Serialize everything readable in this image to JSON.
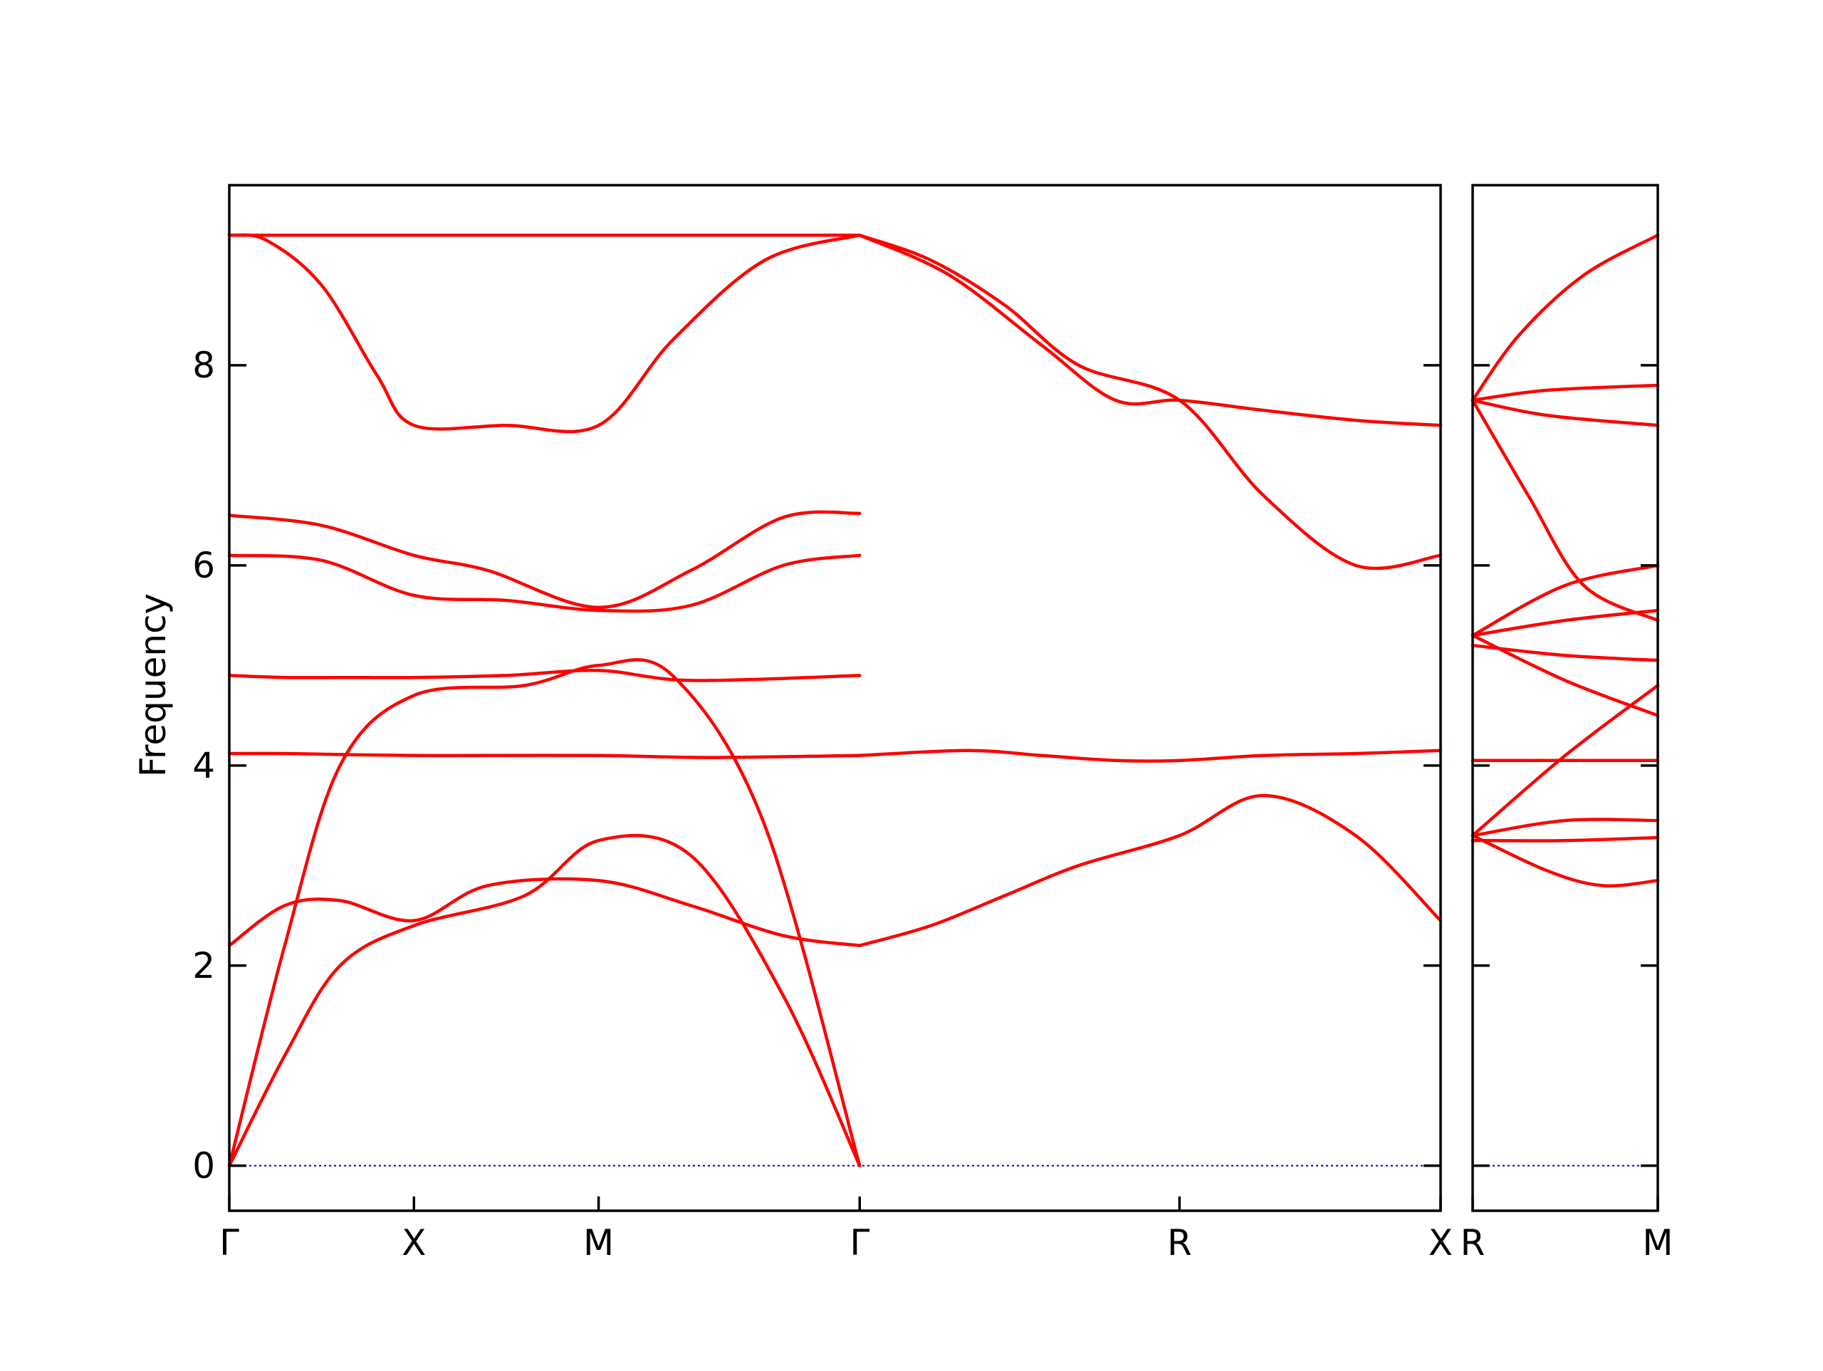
{
  "chart_data": {
    "type": "line",
    "title": "",
    "ylabel": "Frequency",
    "xlabel": "",
    "ylim": [
      -0.45,
      9.8
    ],
    "yticks": [
      0,
      2,
      4,
      6,
      8
    ],
    "line_color": "#ff0000",
    "zero_line_color": "#0000cc",
    "panels": [
      {
        "id": "main",
        "ticks": [
          {
            "label": "Γ",
            "pos": 0
          },
          {
            "label": "X",
            "pos": 1
          },
          {
            "label": "M",
            "pos": 2
          },
          {
            "label": "Γ",
            "pos": 3.414
          },
          {
            "label": "R",
            "pos": 5.146
          },
          {
            "label": "X",
            "pos": 6.56
          }
        ],
        "series": [
          {
            "x": [
              0,
              0.3,
              0.6,
              1,
              1.5,
              2,
              2.7,
              3.414
            ],
            "y": [
              9.3,
              9.3,
              9.3,
              9.3,
              9.3,
              9.3,
              9.3,
              9.3
            ]
          },
          {
            "x": [
              0,
              0.2,
              0.5,
              0.8,
              1,
              1.5,
              2,
              2.4,
              2.9,
              3.414
            ],
            "y": [
              9.3,
              9.25,
              8.8,
              7.9,
              7.4,
              7.4,
              7.4,
              8.25,
              9.05,
              9.3
            ]
          },
          {
            "x": [
              0,
              0.5,
              1,
              1.4,
              2,
              2.5,
              3,
              3.414
            ],
            "y": [
              6.5,
              6.4,
              6.1,
              5.95,
              5.58,
              5.95,
              6.48,
              6.52
            ]
          },
          {
            "x": [
              0,
              0.3,
              0.6,
              1,
              1.5,
              2,
              2.5,
              3.414
            ],
            "y": [
              4.9,
              4.88,
              4.88,
              4.88,
              4.9,
              4.95,
              4.85,
              4.9
            ]
          },
          {
            "x": [
              0,
              0.3,
              0.6,
              1,
              1.3,
              2,
              2.6,
              3.414
            ],
            "y": [
              4.12,
              4.12,
              4.11,
              4.1,
              4.1,
              4.1,
              4.08,
              4.1
            ]
          },
          {
            "x": [
              0,
              0.3,
              0.6,
              1,
              1.4,
              2,
              2.5,
              3,
              3.414
            ],
            "y": [
              2.2,
              2.6,
              2.65,
              2.45,
              2.8,
              2.85,
              2.6,
              2.3,
              2.2
            ]
          },
          {
            "x": [
              0,
              0.3,
              0.6,
              1,
              1.6,
              2,
              2.5,
              3,
              3.414
            ],
            "y": [
              0,
              1.1,
              2.0,
              2.4,
              2.7,
              3.25,
              3.1,
              1.7,
              0
            ]
          },
          {
            "x": [
              0,
              0.3,
              0.6,
              1,
              1.6,
              2,
              2.4,
              2.9,
              3.414
            ],
            "y": [
              0,
              2.2,
              4.0,
              4.7,
              4.8,
              5.0,
              4.9,
              3.4,
              0
            ]
          },
          {
            "x": [
              0,
              0.5,
              1,
              1.5,
              2,
              2.5,
              3,
              3.414
            ],
            "y": [
              6.1,
              6.05,
              5.7,
              5.65,
              5.55,
              5.6,
              6.0,
              6.1
            ]
          },
          {
            "x": [
              3.414,
              3.9,
              4.4,
              4.8,
              5.146,
              5.6,
              6.1,
              6.56
            ],
            "y": [
              9.3,
              8.9,
              8.2,
              7.65,
              7.65,
              7.55,
              7.45,
              7.4
            ]
          },
          {
            "x": [
              3.414,
              3.8,
              4.2,
              4.6,
              5.146,
              5.6,
              6.1,
              6.56
            ],
            "y": [
              9.3,
              9.05,
              8.6,
              8.0,
              7.65,
              6.7,
              6.0,
              6.1
            ]
          },
          {
            "x": [
              3.414,
              4,
              4.4,
              4.8,
              5.146,
              5.6,
              6.1,
              6.56
            ],
            "y": [
              4.1,
              4.15,
              4.1,
              4.05,
              4.05,
              4.1,
              4.12,
              4.15
            ]
          },
          {
            "x": [
              3.414,
              3.8,
              4.2,
              4.6,
              5.146,
              5.6,
              6.1,
              6.56
            ],
            "y": [
              2.2,
              2.4,
              2.7,
              3.0,
              3.3,
              3.7,
              3.3,
              2.45
            ]
          }
        ]
      },
      {
        "id": "side",
        "ticks": [
          {
            "label": "R",
            "pos": 0
          },
          {
            "label": "M",
            "pos": 1
          }
        ],
        "series": [
          {
            "x": [
              0,
              0.25,
              0.6,
              1
            ],
            "y": [
              7.65,
              8.3,
              8.9,
              9.3
            ]
          },
          {
            "x": [
              0,
              0.4,
              1
            ],
            "y": [
              7.65,
              7.75,
              7.8
            ]
          },
          {
            "x": [
              0,
              0.4,
              1
            ],
            "y": [
              7.65,
              7.5,
              7.4
            ]
          },
          {
            "x": [
              0,
              0.3,
              0.6,
              1
            ],
            "y": [
              7.65,
              6.7,
              5.8,
              5.45
            ]
          },
          {
            "x": [
              0,
              0.5,
              1
            ],
            "y": [
              5.3,
              5.8,
              6.0
            ]
          },
          {
            "x": [
              0,
              0.5,
              1
            ],
            "y": [
              5.3,
              5.45,
              5.55
            ]
          },
          {
            "x": [
              0,
              0.5,
              1
            ],
            "y": [
              5.2,
              5.1,
              5.05
            ]
          },
          {
            "x": [
              0,
              0.5,
              1
            ],
            "y": [
              5.3,
              4.85,
              4.5
            ]
          },
          {
            "x": [
              0,
              0.4,
              1
            ],
            "y": [
              4.05,
              4.05,
              4.05
            ]
          },
          {
            "x": [
              0,
              0.5,
              1
            ],
            "y": [
              3.3,
              4.1,
              4.8
            ]
          },
          {
            "x": [
              0,
              0.5,
              1
            ],
            "y": [
              3.3,
              3.45,
              3.45
            ]
          },
          {
            "x": [
              0,
              0.5,
              1
            ],
            "y": [
              3.25,
              3.25,
              3.28
            ]
          },
          {
            "x": [
              0,
              0.4,
              0.7,
              1
            ],
            "y": [
              3.3,
              2.95,
              2.8,
              2.85
            ]
          }
        ]
      }
    ]
  }
}
